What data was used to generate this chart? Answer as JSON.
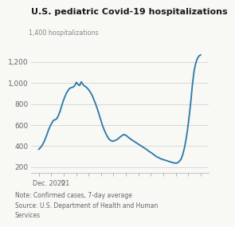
{
  "title": "U.S. pediatric Covid-19 hospitalizations",
  "top_label": "1,400 hospitalizations",
  "note": "Note: Confirmed cases, 7-day average\nSource: U.S. Department of Health and Human\nServices",
  "ylim": [
    150,
    1420
  ],
  "yticks": [
    200,
    400,
    600,
    800,
    1000,
    1200
  ],
  "line_color": "#2878a8",
  "background_color": "#f8f8f5",
  "line_width": 1.3,
  "values": [
    370,
    385,
    405,
    435,
    470,
    510,
    555,
    590,
    620,
    645,
    650,
    660,
    690,
    730,
    780,
    830,
    870,
    905,
    930,
    950,
    955,
    960,
    975,
    1005,
    985,
    975,
    1010,
    985,
    970,
    960,
    945,
    925,
    900,
    870,
    830,
    790,
    745,
    695,
    645,
    595,
    555,
    520,
    490,
    465,
    455,
    445,
    450,
    455,
    465,
    475,
    490,
    500,
    510,
    505,
    495,
    480,
    470,
    458,
    448,
    438,
    428,
    418,
    408,
    398,
    388,
    378,
    368,
    355,
    345,
    335,
    323,
    312,
    300,
    293,
    285,
    278,
    272,
    268,
    263,
    258,
    253,
    248,
    243,
    240,
    238,
    242,
    255,
    275,
    315,
    375,
    455,
    555,
    680,
    820,
    985,
    1110,
    1185,
    1230,
    1255,
    1265
  ]
}
